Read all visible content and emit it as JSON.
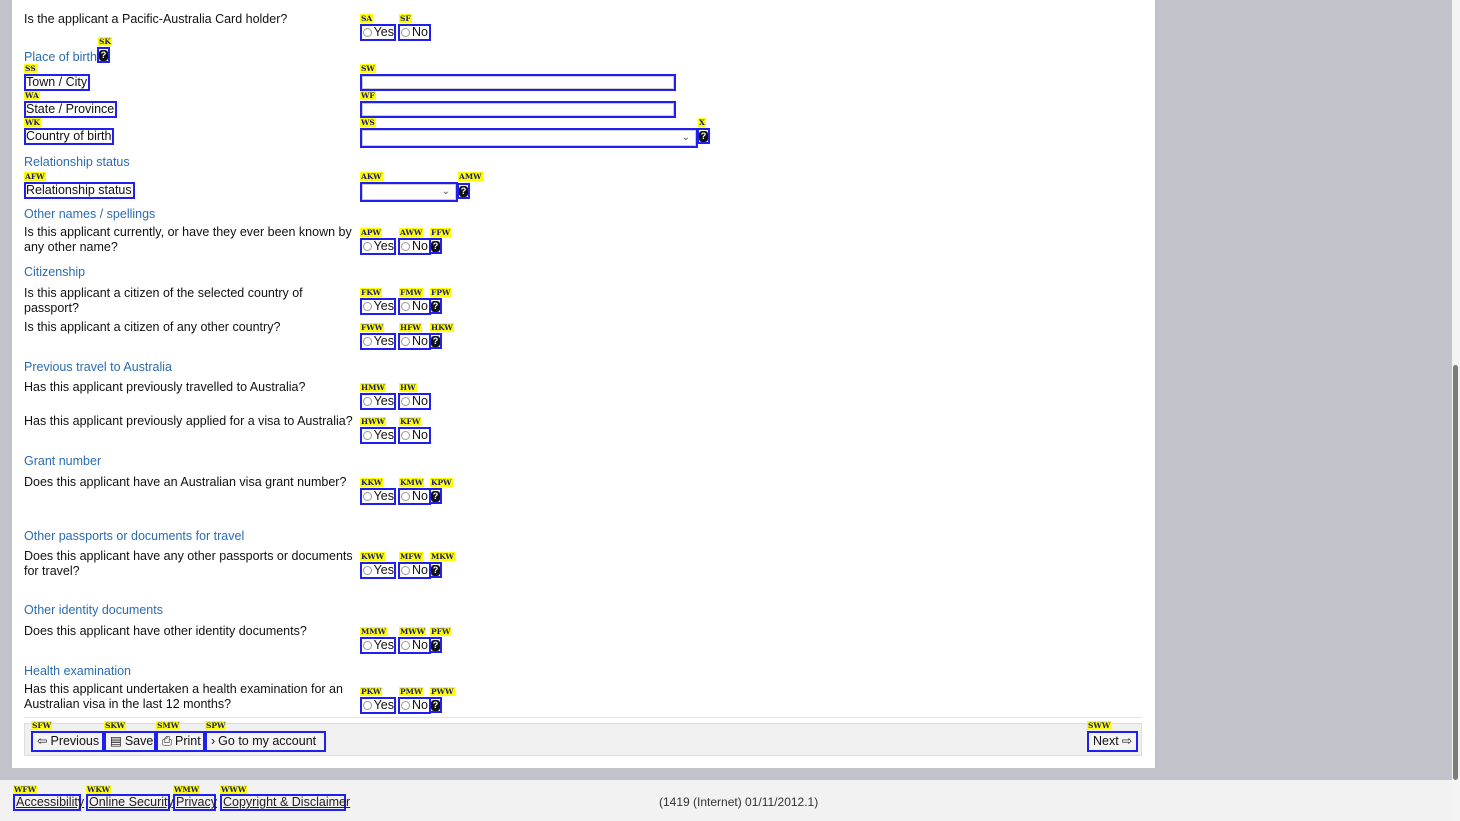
{
  "questions": {
    "pac": "Is the applicant a Pacific-Australia Card holder?",
    "other_names": "Is this applicant currently, or have they ever been known by any other name?",
    "citizen_passport": "Is this applicant a citizen of the selected country of passport?",
    "citizen_other": "Is this applicant a citizen of any other country?",
    "travelled": "Has this applicant previously travelled to Australia?",
    "applied": "Has this applicant previously applied for a visa to Australia?",
    "grant": "Does this applicant have an Australian visa grant number?",
    "other_passports": "Does this applicant have any other passports or documents for travel?",
    "identity": "Does this applicant have other identity documents?",
    "health": "Has this applicant undertaken a health examination for an Australian visa in the last 12 months?"
  },
  "sections": {
    "place_of_birth": "Place of birth",
    "relationship": "Relationship status",
    "other_names": "Other names / spellings",
    "citizenship": "Citizenship",
    "previous_travel": "Previous travel to Australia",
    "grant": "Grant number",
    "other_passports": "Other passports or documents for travel",
    "identity": "Other identity documents",
    "health": "Health examination"
  },
  "fields": {
    "town": "Town / City",
    "state": "State / Province",
    "country": "Country of birth",
    "relationship": "Relationship status",
    "town_value": "",
    "state_value": "",
    "country_value": "",
    "relationship_value": ""
  },
  "options": {
    "yes": "Yes",
    "no": "No",
    "help": "?"
  },
  "tags": [
    "SA",
    "SF",
    "SK",
    "SS",
    "SW",
    "WA",
    "WF",
    "WK",
    "WS",
    "X",
    "AFW",
    "AKW",
    "AMW",
    "APW",
    "AWW",
    "FFW",
    "FKW",
    "FMW",
    "FPW",
    "FWW",
    "HFW",
    "HKW",
    "HMW",
    "HW",
    "HWW",
    "KFW",
    "KKW",
    "KMW",
    "KPW",
    "KWW",
    "MFW",
    "MKW",
    "MMW",
    "MWW",
    "PFW",
    "PKW",
    "PMW",
    "PWW",
    "SFW",
    "SKW",
    "SMW",
    "SPW",
    "SWW",
    "WFW",
    "WKW",
    "WMW",
    "WWW"
  ],
  "buttons": {
    "previous": "Previous",
    "save": "Save",
    "print": "Print",
    "account": "Go to my account",
    "next": "Next"
  },
  "footer": {
    "links": [
      "Accessibility",
      "Online Security",
      "Privacy",
      "Copyright & Disclaimer"
    ],
    "version": "(1419 (Internet) 01/11/2012.1)"
  },
  "colors": {
    "section": "#2b6cb0",
    "highlight": "#2020ee",
    "tag_bg": "#ffff00"
  }
}
